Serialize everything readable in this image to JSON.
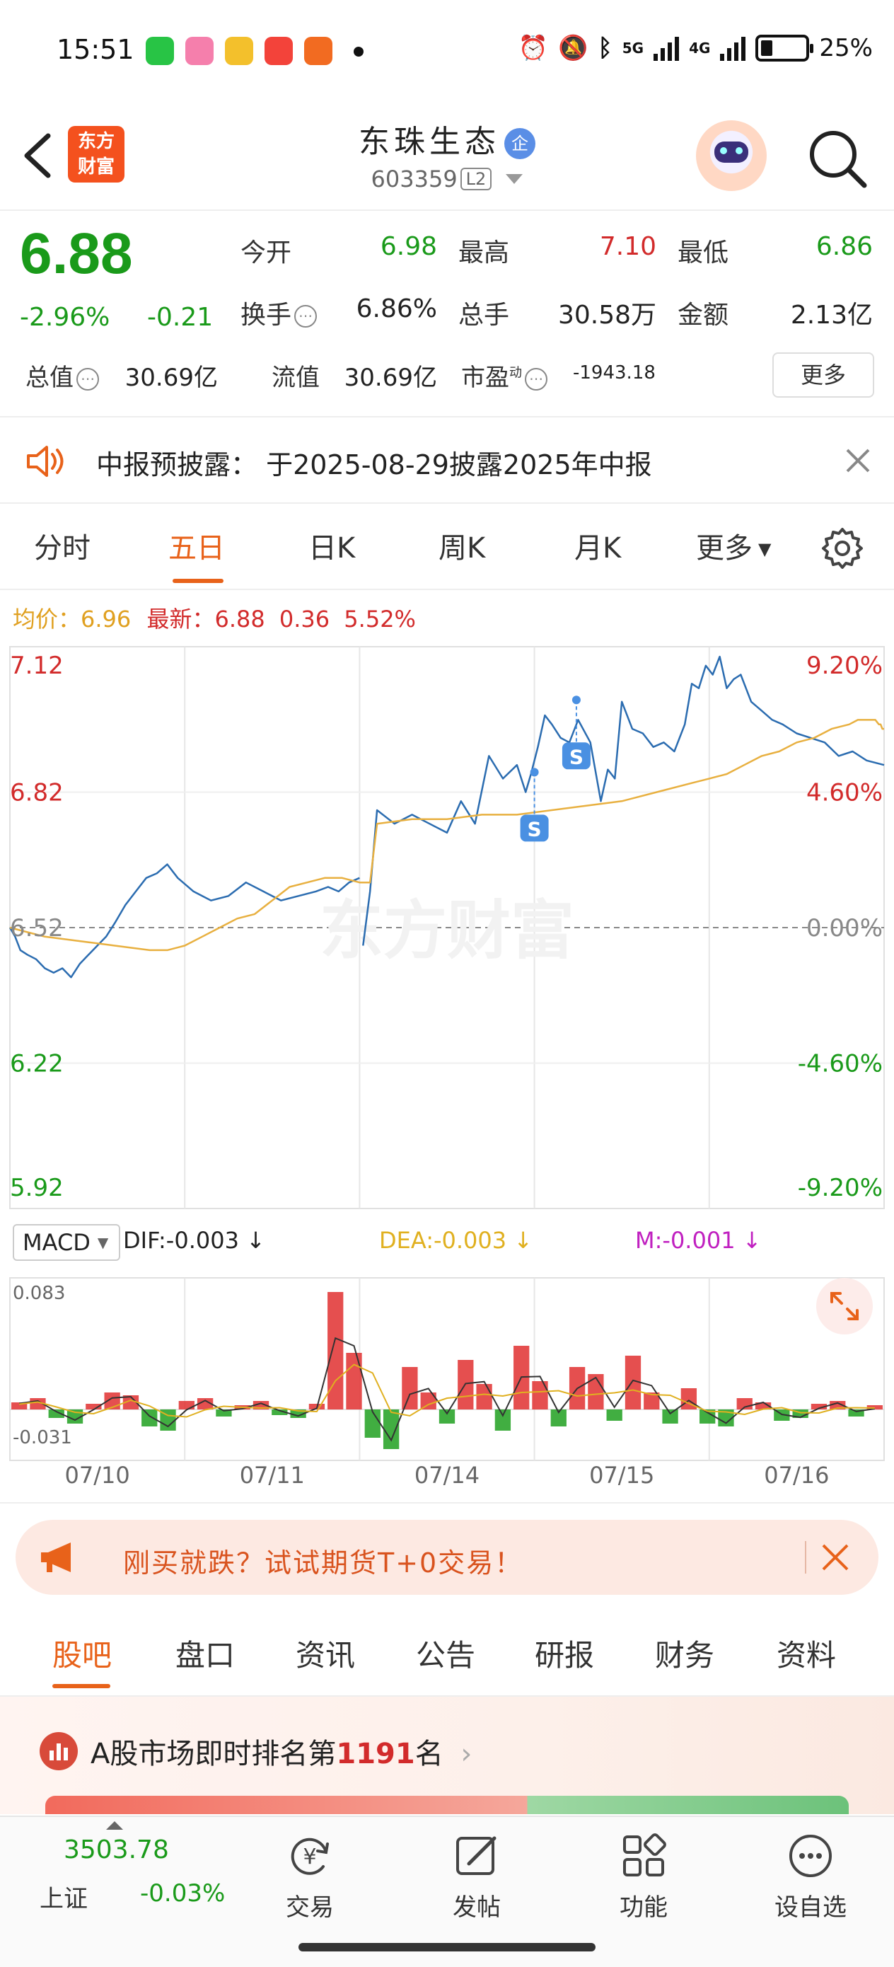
{
  "status_bar": {
    "time": "15:51",
    "battery": "25%",
    "network_5g": "5G",
    "network_4g": "4G",
    "icons": [
      "wechat-icon",
      "bilibili-icon",
      "weibo-icon",
      "video-icon",
      "feishu-icon",
      "alarm-icon",
      "mute-icon",
      "bluetooth-icon"
    ]
  },
  "header": {
    "logo_line1": "东方",
    "logo_line2": "财富",
    "stock_name": "东珠生态",
    "enterprise_badge": "企",
    "stock_code": "603359",
    "level_badge": "L2"
  },
  "quote": {
    "last_price": "6.88",
    "change_pct": "-2.96%",
    "change_amt": "-0.21",
    "open_label": "今开",
    "open_value": "6.98",
    "high_label": "最高",
    "high_value": "7.10",
    "low_label": "最低",
    "low_value": "6.86",
    "turnover_label": "换手",
    "turnover_value": "6.86%",
    "volume_label": "总手",
    "volume_value": "30.58万",
    "amount_label": "金额",
    "amount_value": "2.13亿",
    "mcap_label": "总值",
    "mcap_value": "30.69亿",
    "float_label": "流值",
    "float_value": "30.69亿",
    "pe_label": "市盈",
    "pe_sup": "动",
    "pe_value": "-1943.18",
    "more_label": "更多"
  },
  "notice": {
    "text": "中报预披露： 于2025-08-29披露2025年中报"
  },
  "chart_tabs": {
    "items": [
      "分时",
      "五日",
      "日K",
      "周K",
      "月K",
      "更多"
    ],
    "active": 1
  },
  "price_info": {
    "avg_label": "均价：",
    "avg_value": "6.96",
    "latest_label": "最新：",
    "latest_value": "6.88",
    "latest_change": "0.36",
    "latest_pct": "5.52%"
  },
  "chart_data": {
    "type": "line",
    "days": [
      "07/10",
      "07/11",
      "07/14",
      "07/15",
      "07/16"
    ],
    "y_left_ticks": [
      "7.12",
      "6.82",
      "6.52",
      "6.22",
      "5.92"
    ],
    "y_right_ticks": [
      "9.20%",
      "4.60%",
      "0.00%",
      "-4.60%",
      "-9.20%"
    ],
    "ylim": [
      5.92,
      7.12
    ],
    "prev_close": 6.52,
    "watermark": "东方财富",
    "series": [
      {
        "values": [
          6.52,
          6.5,
          6.47,
          6.46,
          6.45,
          6.43,
          6.42,
          6.43,
          6.41,
          6.44,
          6.46,
          6.48,
          6.5,
          6.53,
          6.57,
          6.6,
          6.63,
          6.64,
          6.66,
          6.63,
          6.6,
          6.58,
          6.59,
          6.62,
          6.6,
          6.58,
          6.59,
          6.6,
          6.61,
          6.6,
          6.62,
          6.63
        ],
        "day_offsets": [
          0,
          0.03,
          0.06,
          0.1,
          0.15,
          0.2,
          0.25,
          0.3,
          0.35,
          0.4,
          0.45,
          0.5,
          0.55,
          0.6,
          0.66,
          0.72,
          0.78,
          0.84,
          0.9,
          0.96,
          1.05,
          1.15,
          1.25,
          1.35,
          1.45,
          1.55,
          1.65,
          1.75,
          1.82,
          1.88,
          1.94,
          2.0
        ]
      },
      {
        "values": [
          6.48,
          6.6,
          6.78,
          6.75,
          6.77,
          6.75,
          6.73,
          6.8,
          6.75,
          6.9,
          6.85,
          6.88,
          6.82,
          6.86,
          6.92,
          6.99,
          6.97,
          6.94,
          6.93,
          6.98,
          6.93,
          6.8,
          6.87,
          6.85,
          7.02,
          6.96,
          6.95,
          6.92,
          6.93,
          6.91,
          6.97,
          7.06,
          7.05,
          7.1,
          7.08,
          7.12,
          7.05,
          7.07,
          7.08,
          7.02,
          7.0,
          6.98,
          6.97,
          6.95,
          6.94,
          6.93,
          6.9,
          6.91,
          6.89,
          6.88
        ],
        "day_offsets": [
          2.02,
          2.06,
          2.1,
          2.2,
          2.3,
          2.4,
          2.5,
          2.58,
          2.66,
          2.74,
          2.82,
          2.9,
          2.95,
          2.98,
          3.02,
          3.06,
          3.1,
          3.15,
          3.2,
          3.25,
          3.32,
          3.38,
          3.42,
          3.46,
          3.5,
          3.56,
          3.62,
          3.68,
          3.74,
          3.8,
          3.86,
          3.9,
          3.94,
          3.98,
          4.02,
          4.06,
          4.1,
          4.14,
          4.18,
          4.24,
          4.3,
          4.36,
          4.42,
          4.5,
          4.58,
          4.66,
          4.74,
          4.82,
          4.9,
          5.0
        ]
      },
      {
        "values": [
          6.52,
          6.5,
          6.49,
          6.48,
          6.47,
          6.47,
          6.48,
          6.5,
          6.52,
          6.54,
          6.55,
          6.58,
          6.61,
          6.62,
          6.63,
          6.63,
          6.62,
          6.62,
          6.62,
          6.62,
          6.62,
          6.75,
          6.76,
          6.76,
          6.77,
          6.77,
          6.78,
          6.79,
          6.8,
          6.82,
          6.84,
          6.85,
          6.86,
          6.88,
          6.9,
          6.91,
          6.93,
          6.94,
          6.96,
          6.97,
          6.98,
          6.98,
          6.98,
          6.97,
          6.97,
          6.96,
          6.96
        ],
        "day_offsets": [
          0,
          0.2,
          0.4,
          0.6,
          0.8,
          0.9,
          1.0,
          1.1,
          1.2,
          1.3,
          1.4,
          1.5,
          1.6,
          1.7,
          1.8,
          1.9,
          2.0,
          2.05,
          2.02,
          2.04,
          2.06,
          2.1,
          2.3,
          2.5,
          2.7,
          2.9,
          3.1,
          3.3,
          3.5,
          3.7,
          3.9,
          4.0,
          4.1,
          4.2,
          4.3,
          4.4,
          4.5,
          4.6,
          4.7,
          4.8,
          4.85,
          4.9,
          4.95,
          4.97,
          4.98,
          4.99,
          5.0
        ]
      }
    ],
    "sell_markers": [
      {
        "day_offset": 3.0,
        "value": 6.77,
        "label": "S"
      },
      {
        "day_offset": 3.24,
        "value": 6.93,
        "label": "S"
      }
    ]
  },
  "macd": {
    "selector_label": "MACD",
    "dif_label": "DIF:-0.003 ↓",
    "dea_label": "DEA:-0.003 ↓",
    "m_label": "M:-0.001 ↓",
    "y_top": "0.083",
    "y_bottom": "-0.031",
    "colors": {
      "dif": "#333333",
      "dea": "#e0b020",
      "m": "#c020c0",
      "up": "#e03030",
      "down": "#20a020"
    },
    "chart_data": {
      "type": "bar",
      "ylim": [
        -0.031,
        0.083
      ],
      "bar_values": [
        0.005,
        0.008,
        -0.006,
        -0.01,
        0.004,
        0.012,
        0.01,
        -0.012,
        -0.015,
        0.006,
        0.008,
        -0.005,
        0.003,
        0.006,
        -0.004,
        -0.006,
        0.004,
        0.083,
        0.04,
        -0.02,
        -0.028,
        0.03,
        0.012,
        -0.01,
        0.035,
        0.018,
        -0.015,
        0.045,
        0.02,
        -0.012,
        0.03,
        0.025,
        -0.008,
        0.038,
        0.012,
        -0.01,
        0.015,
        -0.01,
        -0.012,
        0.008,
        0.005,
        -0.008,
        -0.006,
        0.004,
        0.006,
        -0.005,
        0.003
      ]
    }
  },
  "ad_banner": {
    "text": "刚买就跌？试试期货T+0交易！"
  },
  "info_tabs": {
    "items": [
      "股吧",
      "盘口",
      "资讯",
      "公告",
      "研报",
      "财务",
      "资料"
    ],
    "active": 0
  },
  "rank": {
    "prefix": "A股市场即时排名第",
    "number": "1191",
    "suffix": "名"
  },
  "bottom_nav": {
    "index_value": "3503.78",
    "index_name": "上证",
    "index_change": "-0.03%",
    "items": [
      {
        "label": "交易",
        "icon": "yen-refresh-icon"
      },
      {
        "label": "发帖",
        "icon": "edit-icon"
      },
      {
        "label": "功能",
        "icon": "grid-icon"
      },
      {
        "label": "设自选",
        "icon": "more-icon"
      }
    ]
  }
}
